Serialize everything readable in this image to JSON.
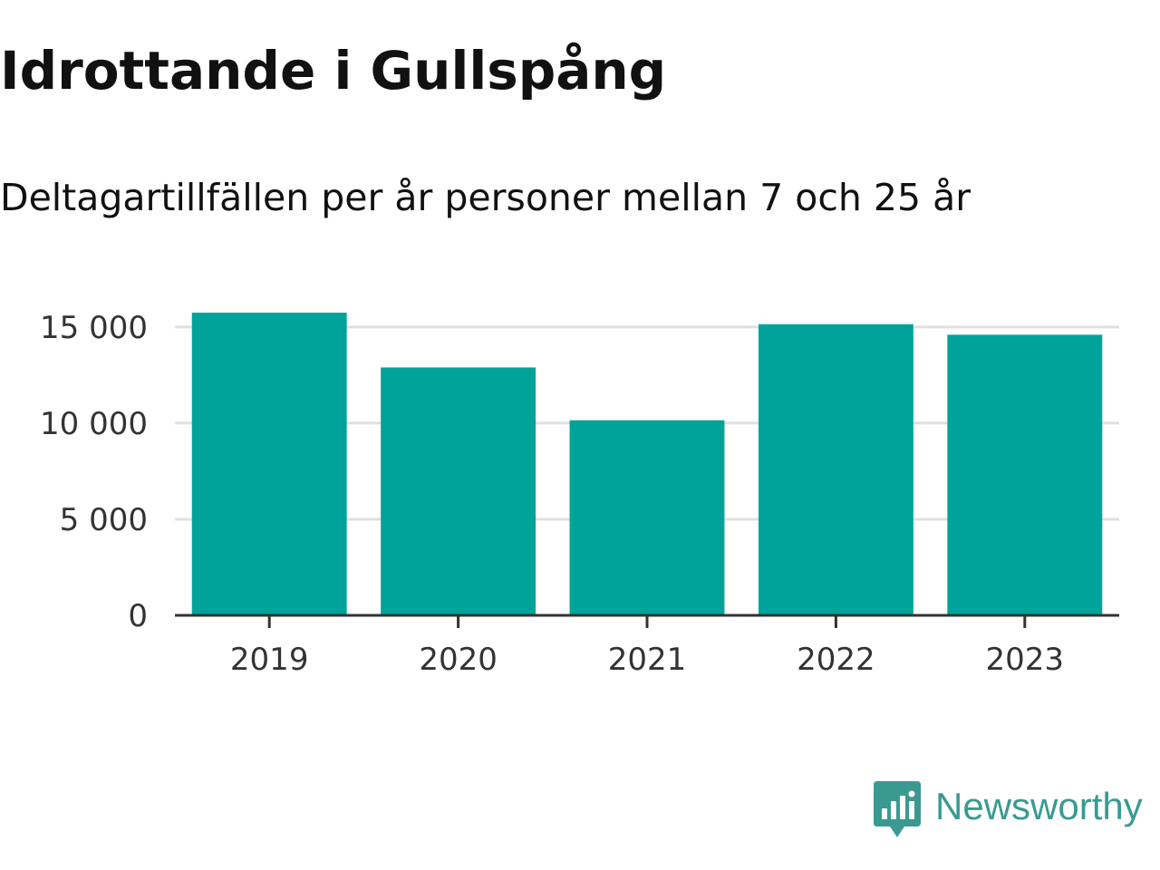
{
  "title": "Idrottande i Gullspång",
  "subtitle": "Deltagartillfällen per år personer mellan 7 och 25 år",
  "brand": {
    "name": "Newsworthy",
    "color": "#3a9a92"
  },
  "chart_data": {
    "type": "bar",
    "title": "Idrottande i Gullspång",
    "subtitle": "Deltagartillfällen per år personer mellan 7 och 25 år",
    "xlabel": "",
    "ylabel": "",
    "categories": [
      "2019",
      "2020",
      "2021",
      "2022",
      "2023"
    ],
    "values": [
      15750,
      12900,
      10150,
      15150,
      14600
    ],
    "ylim": [
      0,
      15750
    ],
    "yticks": [
      0,
      5000,
      10000,
      15000
    ],
    "ytick_labels": [
      "0",
      "5 000",
      "10 000",
      "15 000"
    ],
    "grid": true,
    "bar_color": "#00a39a",
    "grid_color": "#e0e0e0",
    "axis_color": "#333333"
  }
}
